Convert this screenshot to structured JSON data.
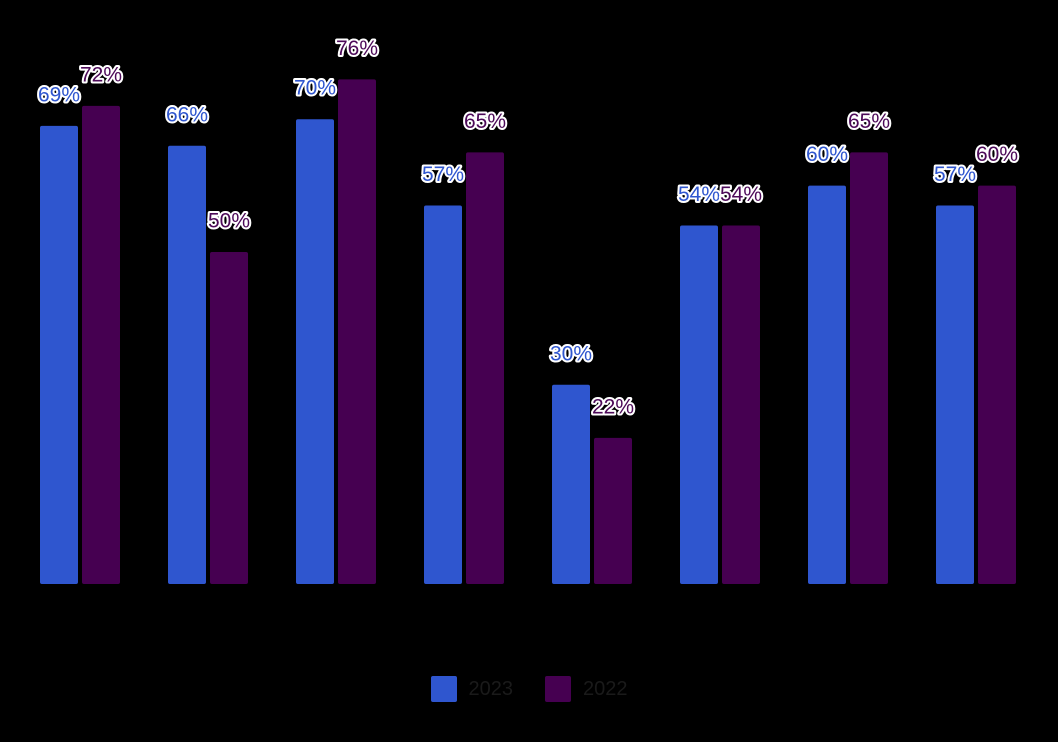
{
  "chart_data": {
    "type": "bar",
    "categories": [
      "",
      "",
      "",
      "",
      "",
      "",
      "",
      ""
    ],
    "series": [
      {
        "name": "2023",
        "color": "#2f56cf",
        "values": [
          69,
          66,
          70,
          57,
          30,
          54,
          60,
          57
        ]
      },
      {
        "name": "2022",
        "color": "#460051",
        "values": [
          72,
          50,
          76,
          65,
          22,
          54,
          65,
          60
        ]
      }
    ],
    "value_suffix": "%",
    "ylim": [
      0,
      100
    ],
    "grid": false,
    "legend_position": "bottom-center",
    "title": "",
    "xlabel": "",
    "ylabel": ""
  },
  "legend": {
    "items": [
      {
        "label": "2023",
        "color": "#2f56cf"
      },
      {
        "label": "2022",
        "color": "#460051"
      }
    ]
  }
}
